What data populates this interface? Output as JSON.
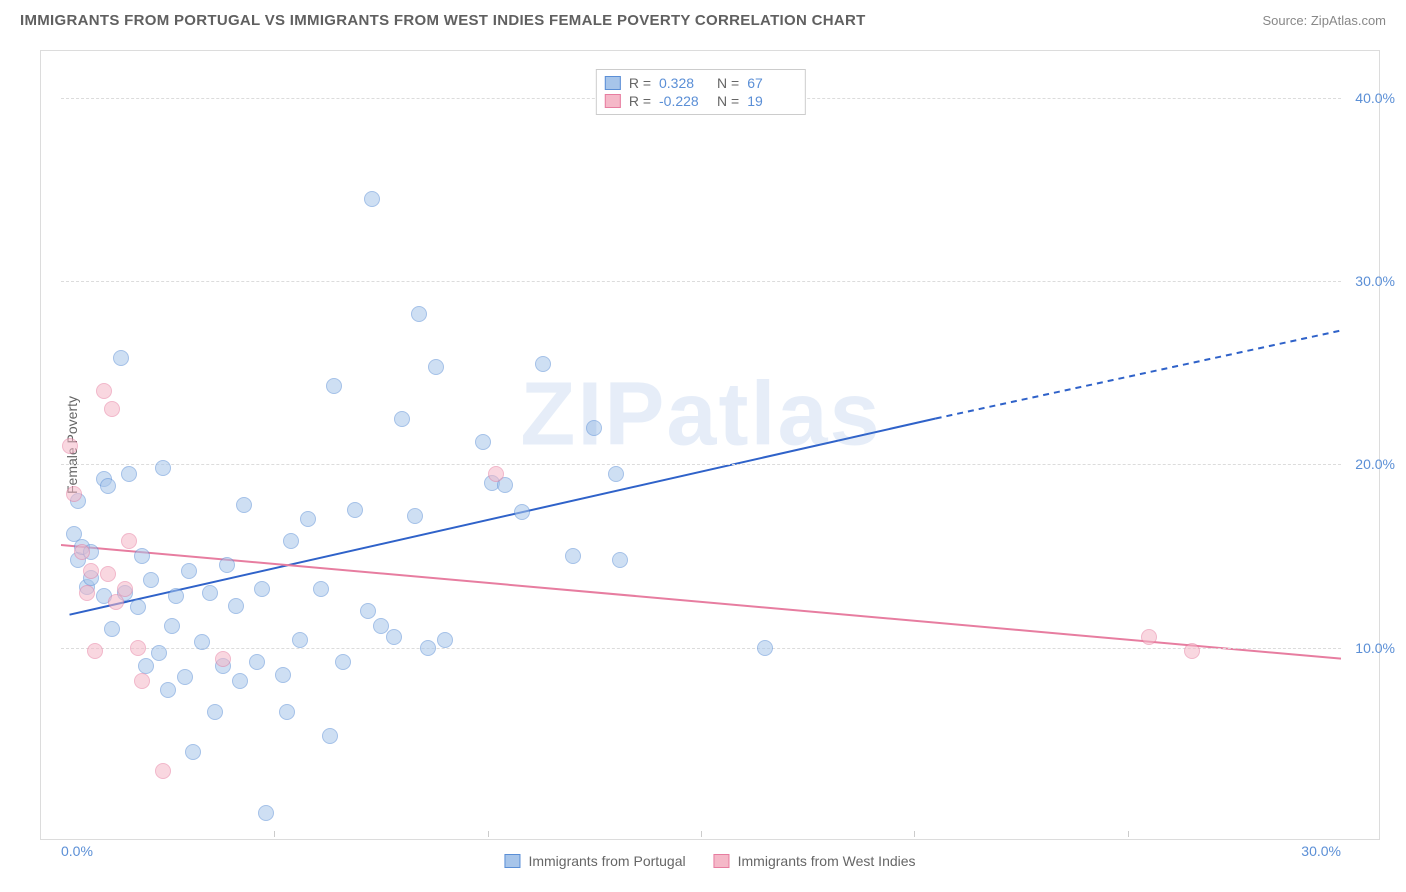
{
  "title": "IMMIGRANTS FROM PORTUGAL VS IMMIGRANTS FROM WEST INDIES FEMALE POVERTY CORRELATION CHART",
  "source": "Source: ZipAtlas.com",
  "watermark": "ZIPatlas",
  "y_axis_label": "Female Poverty",
  "chart": {
    "type": "scatter",
    "xlim": [
      0,
      30
    ],
    "ylim": [
      0,
      42
    ],
    "y_ticks": [
      10,
      20,
      30,
      40
    ],
    "y_tick_labels": [
      "10.0%",
      "20.0%",
      "30.0%",
      "40.0%"
    ],
    "x_ticks": [
      0,
      30
    ],
    "x_tick_labels": [
      "0.0%",
      "30.0%"
    ],
    "x_minor_ticks": [
      5,
      10,
      15,
      20,
      25
    ],
    "grid_color": "#dcdcdc",
    "axis_tick_color": "#5b8fd6",
    "background_color": "#ffffff",
    "series": [
      {
        "name": "Immigrants from Portugal",
        "fill_color": "#a7c5ea",
        "fill_opacity": 0.55,
        "stroke_color": "#5b8fd6",
        "marker_radius": 8,
        "R": 0.328,
        "N": 67,
        "trend": {
          "x1": 0.2,
          "y1": 11.8,
          "x2": 20.5,
          "y2": 22.5,
          "dash_to_x": 30,
          "dash_to_y": 27.3,
          "color": "#2f62c9",
          "width": 2
        },
        "points": [
          [
            0.3,
            16.2
          ],
          [
            0.4,
            14.8
          ],
          [
            0.4,
            18.0
          ],
          [
            0.5,
            15.5
          ],
          [
            0.6,
            13.3
          ],
          [
            0.7,
            13.8
          ],
          [
            0.7,
            15.2
          ],
          [
            1.0,
            19.2
          ],
          [
            1.0,
            12.8
          ],
          [
            1.1,
            18.8
          ],
          [
            1.2,
            11.0
          ],
          [
            1.4,
            25.8
          ],
          [
            1.5,
            13.0
          ],
          [
            1.6,
            19.5
          ],
          [
            1.8,
            12.2
          ],
          [
            1.9,
            15.0
          ],
          [
            2.0,
            9.0
          ],
          [
            2.1,
            13.7
          ],
          [
            2.3,
            9.7
          ],
          [
            2.4,
            19.8
          ],
          [
            2.5,
            7.7
          ],
          [
            2.6,
            11.2
          ],
          [
            2.7,
            12.8
          ],
          [
            2.9,
            8.4
          ],
          [
            3.0,
            14.2
          ],
          [
            3.1,
            4.3
          ],
          [
            3.3,
            10.3
          ],
          [
            3.5,
            13.0
          ],
          [
            3.6,
            6.5
          ],
          [
            3.8,
            9.0
          ],
          [
            3.9,
            14.5
          ],
          [
            4.1,
            12.3
          ],
          [
            4.2,
            8.2
          ],
          [
            4.3,
            17.8
          ],
          [
            4.6,
            9.2
          ],
          [
            4.7,
            13.2
          ],
          [
            4.8,
            1.0
          ],
          [
            5.2,
            8.5
          ],
          [
            5.3,
            6.5
          ],
          [
            5.4,
            15.8
          ],
          [
            5.6,
            10.4
          ],
          [
            5.8,
            17.0
          ],
          [
            6.1,
            13.2
          ],
          [
            6.3,
            5.2
          ],
          [
            6.4,
            24.3
          ],
          [
            6.6,
            9.2
          ],
          [
            6.9,
            17.5
          ],
          [
            7.2,
            12.0
          ],
          [
            7.3,
            34.5
          ],
          [
            7.5,
            11.2
          ],
          [
            7.8,
            10.6
          ],
          [
            8.0,
            22.5
          ],
          [
            8.3,
            17.2
          ],
          [
            8.4,
            28.2
          ],
          [
            8.6,
            10.0
          ],
          [
            8.8,
            25.3
          ],
          [
            9.9,
            21.2
          ],
          [
            10.1,
            19.0
          ],
          [
            10.4,
            18.9
          ],
          [
            10.8,
            17.4
          ],
          [
            11.3,
            25.5
          ],
          [
            12.0,
            15.0
          ],
          [
            12.5,
            22.0
          ],
          [
            13.0,
            19.5
          ],
          [
            13.1,
            14.8
          ],
          [
            16.5,
            10.0
          ],
          [
            9.0,
            10.4
          ]
        ]
      },
      {
        "name": "Immigrants from West Indies",
        "fill_color": "#f5b8c8",
        "fill_opacity": 0.55,
        "stroke_color": "#e77da0",
        "marker_radius": 8,
        "R": -0.228,
        "N": 19,
        "trend": {
          "x1": 0,
          "y1": 15.6,
          "x2": 30,
          "y2": 9.4,
          "color": "#e77da0",
          "width": 2
        },
        "points": [
          [
            0.2,
            21.0
          ],
          [
            0.3,
            18.4
          ],
          [
            0.5,
            15.2
          ],
          [
            0.6,
            13.0
          ],
          [
            0.7,
            14.2
          ],
          [
            0.8,
            9.8
          ],
          [
            1.0,
            24.0
          ],
          [
            1.1,
            14.0
          ],
          [
            1.2,
            23.0
          ],
          [
            1.3,
            12.5
          ],
          [
            1.5,
            13.2
          ],
          [
            1.6,
            15.8
          ],
          [
            1.8,
            10.0
          ],
          [
            1.9,
            8.2
          ],
          [
            2.4,
            3.3
          ],
          [
            3.8,
            9.4
          ],
          [
            10.2,
            19.5
          ],
          [
            25.5,
            10.6
          ],
          [
            26.5,
            9.8
          ]
        ]
      }
    ]
  },
  "legend_top": {
    "rows": [
      {
        "swatch_fill": "#a7c5ea",
        "swatch_stroke": "#5b8fd6",
        "R_label": "R =",
        "R_val": "0.328",
        "N_label": "N =",
        "N_val": "67"
      },
      {
        "swatch_fill": "#f5b8c8",
        "swatch_stroke": "#e77da0",
        "R_label": "R =",
        "R_val": "-0.228",
        "N_label": "N =",
        "N_val": "19"
      }
    ]
  },
  "legend_bottom": {
    "items": [
      {
        "swatch_fill": "#a7c5ea",
        "swatch_stroke": "#5b8fd6",
        "label": "Immigrants from Portugal"
      },
      {
        "swatch_fill": "#f5b8c8",
        "swatch_stroke": "#e77da0",
        "label": "Immigrants from West Indies"
      }
    ]
  }
}
